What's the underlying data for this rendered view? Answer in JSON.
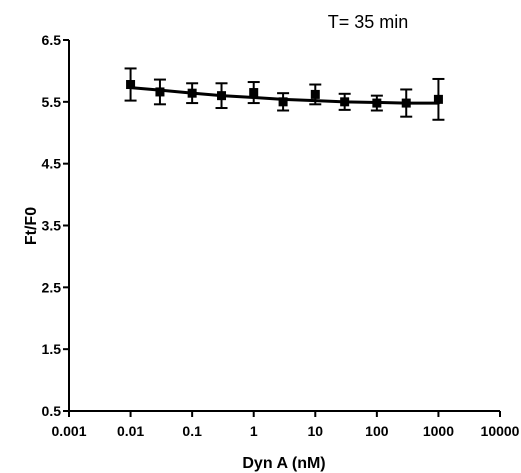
{
  "chart_data": {
    "type": "scatter",
    "title": "T= 35 min",
    "xlabel": "Dyn A (nM)",
    "ylabel": "Ft/F0",
    "x_scale": "log",
    "xlim": [
      0.001,
      10000
    ],
    "ylim": [
      0.5,
      6.5
    ],
    "x_ticks": [
      {
        "value": 0.001,
        "label": "0.001"
      },
      {
        "value": 0.01,
        "label": "0.01"
      },
      {
        "value": 0.1,
        "label": "0.1"
      },
      {
        "value": 1,
        "label": "1"
      },
      {
        "value": 10,
        "label": "10"
      },
      {
        "value": 100,
        "label": "100"
      },
      {
        "value": 1000,
        "label": "1000"
      },
      {
        "value": 10000,
        "label": "10000"
      }
    ],
    "y_ticks": [
      {
        "value": 0.5,
        "label": "0.5"
      },
      {
        "value": 1.5,
        "label": "1.5"
      },
      {
        "value": 2.5,
        "label": "2.5"
      },
      {
        "value": 3.5,
        "label": "3.5"
      },
      {
        "value": 4.5,
        "label": "4.5"
      },
      {
        "value": 5.5,
        "label": "5.5"
      },
      {
        "value": 6.5,
        "label": "6.5"
      }
    ],
    "grid": false,
    "series": [
      {
        "marker": "square",
        "color": "#000000",
        "x": [
          0.01,
          0.03,
          0.1,
          0.3,
          1,
          3,
          10,
          30,
          100,
          300,
          1000
        ],
        "y": [
          5.78,
          5.66,
          5.64,
          5.6,
          5.65,
          5.5,
          5.62,
          5.5,
          5.48,
          5.48,
          5.54
        ],
        "error": [
          0.26,
          0.2,
          0.16,
          0.2,
          0.17,
          0.14,
          0.16,
          0.13,
          0.12,
          0.22,
          0.33
        ]
      }
    ],
    "fit_curve": {
      "color": "#000000",
      "x": [
        0.01,
        0.03,
        0.1,
        0.3,
        1,
        3,
        10,
        30,
        100,
        300,
        1000
      ],
      "y": [
        5.73,
        5.69,
        5.64,
        5.6,
        5.57,
        5.54,
        5.52,
        5.5,
        5.49,
        5.48,
        5.48
      ]
    }
  }
}
